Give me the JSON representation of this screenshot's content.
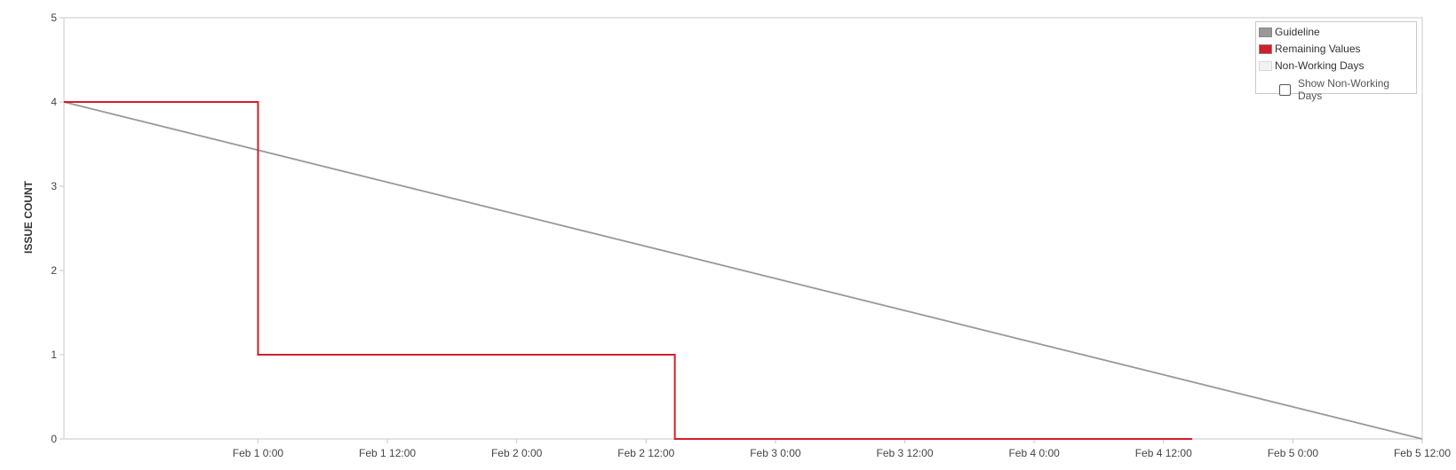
{
  "chart_data": {
    "type": "line",
    "ylabel": "ISSUE COUNT",
    "xlabel": "",
    "ylim": [
      0,
      5
    ],
    "yticks": [
      "0",
      "1",
      "2",
      "3",
      "4",
      "5"
    ],
    "xlim": [
      "2023-01-31 06:00",
      "2023-02-05 12:00"
    ],
    "xticks": [
      {
        "t": "2023-02-01 00:00",
        "label": "Feb 1 0:00"
      },
      {
        "t": "2023-02-01 12:00",
        "label": "Feb 1 12:00"
      },
      {
        "t": "2023-02-02 00:00",
        "label": "Feb 2 0:00"
      },
      {
        "t": "2023-02-02 12:00",
        "label": "Feb 2 12:00"
      },
      {
        "t": "2023-02-03 00:00",
        "label": "Feb 3 0:00"
      },
      {
        "t": "2023-02-03 12:00",
        "label": "Feb 3 12:00"
      },
      {
        "t": "2023-02-04 00:00",
        "label": "Feb 4 0:00"
      },
      {
        "t": "2023-02-04 12:00",
        "label": "Feb 4 12:00"
      },
      {
        "t": "2023-02-05 00:00",
        "label": "Feb 5 0:00"
      },
      {
        "t": "2023-02-05 12:00",
        "label": "Feb 5 12:00"
      }
    ],
    "series": [
      {
        "name": "Guideline",
        "color": "#999999",
        "points": [
          {
            "t": "2023-01-31 06:00",
            "y": 4
          },
          {
            "t": "2023-02-05 12:00",
            "y": 0
          }
        ]
      },
      {
        "name": "Remaining Values",
        "color": "#d0202a",
        "step": true,
        "points": [
          {
            "t": "2023-01-31 06:00",
            "y": 4
          },
          {
            "t": "2023-02-01 00:00",
            "y": 1
          },
          {
            "t": "2023-02-02 14:40",
            "y": 0
          },
          {
            "t": "2023-02-04 14:40",
            "y": 0
          }
        ]
      }
    ],
    "grid": false,
    "legend": {
      "position": "top-right",
      "items": [
        {
          "label": "Guideline",
          "color": "#999999"
        },
        {
          "label": "Remaining Values",
          "color": "#d0202a"
        },
        {
          "label": "Non-Working Days",
          "color": "#f2f2f2"
        }
      ],
      "checkbox_label": "Show Non-Working Days",
      "checkbox_checked": false
    }
  }
}
